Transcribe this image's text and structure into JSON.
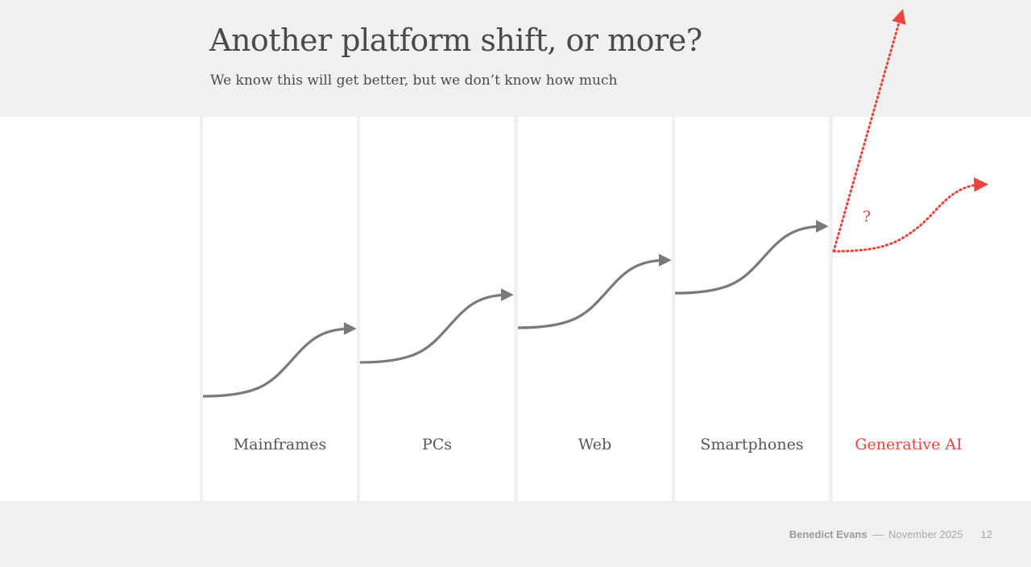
{
  "slide": {
    "title": "Another platform shift, or more?",
    "subtitle": "We know this will get better, but we don’t know how much"
  },
  "columns": [
    {
      "label": "Mainframes"
    },
    {
      "label": "PCs"
    },
    {
      "label": "Web"
    },
    {
      "label": "Smartphones"
    },
    {
      "label": "Generative AI",
      "highlight": true
    }
  ],
  "annotation": {
    "question": "?"
  },
  "footer": {
    "author": "Benedict Evans",
    "separator": "––",
    "date": "November 2025",
    "page": "12"
  },
  "colors": {
    "curve": "#7a7a7a",
    "accent": "#e8453c",
    "panel": "#ffffff",
    "background": "#f0f0f0"
  }
}
